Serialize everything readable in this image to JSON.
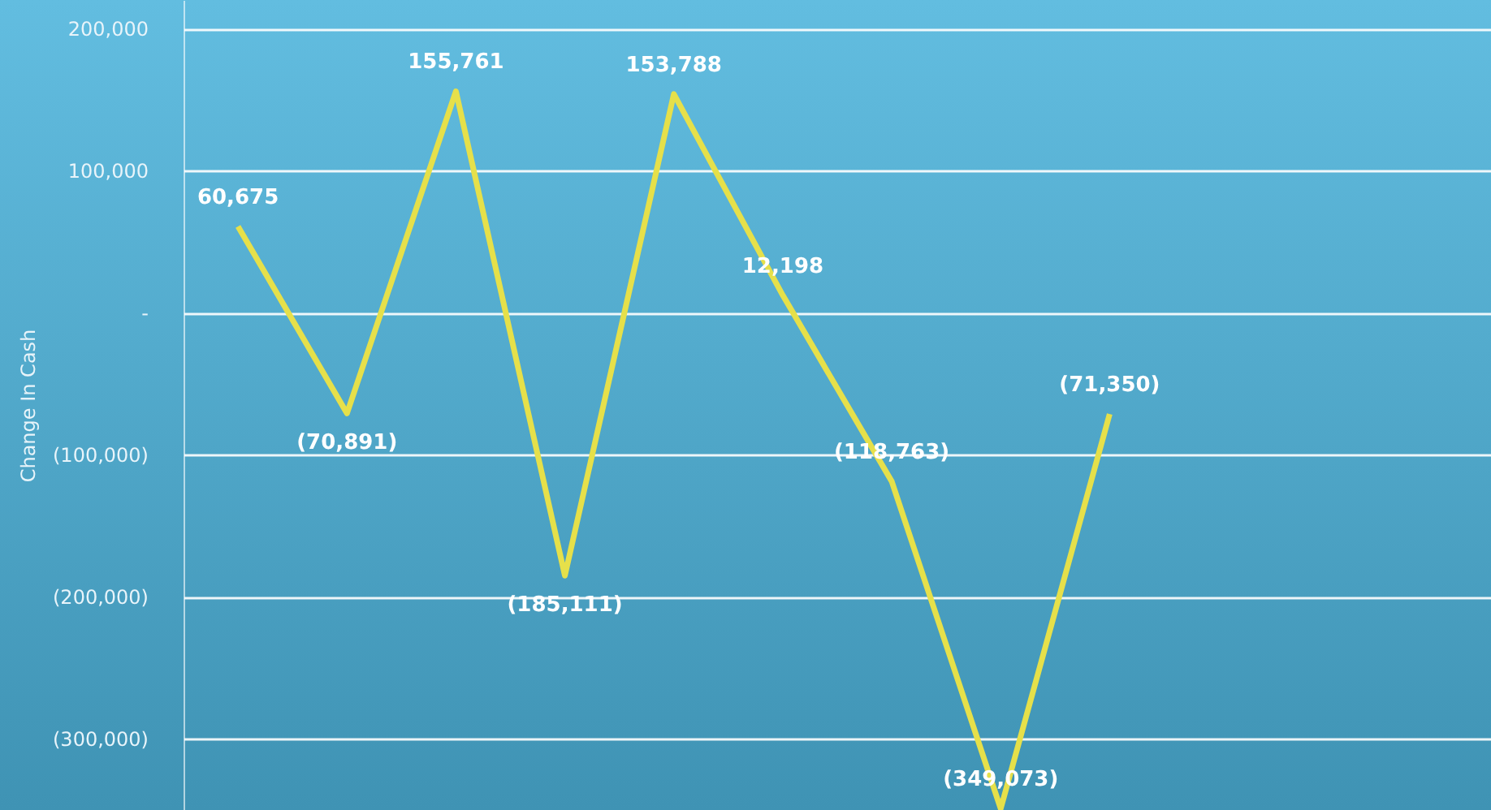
{
  "chart_data": {
    "type": "line",
    "ylabel": "Change In Cash",
    "categories": [
      null,
      null,
      null,
      null,
      null,
      null,
      null,
      null,
      null,
      null,
      null,
      null
    ],
    "series": [
      {
        "color": "#e6e04a",
        "values": [
          60675,
          -70891,
          155761,
          -185111,
          153788,
          12198,
          -118763,
          -349073,
          -71350,
          null,
          null,
          null
        ],
        "value_labels": [
          "60,675",
          "(70,891)",
          "155,761",
          "(185,111)",
          "153,788",
          "12,198",
          "(118,763)",
          "(349,073)",
          "(71,350)",
          null,
          null,
          null
        ]
      }
    ],
    "ylim": [
      -350000,
      220000
    ],
    "yticks": [
      {
        "value": -300000,
        "label": "(300,000)"
      },
      {
        "value": -200000,
        "label": "(200,000)"
      },
      {
        "value": -100000,
        "label": "(100,000)"
      },
      {
        "value": 0,
        "label": "-"
      },
      {
        "value": 100000,
        "label": "100,000"
      },
      {
        "value": 200000,
        "label": "200,000"
      }
    ],
    "grid": "y",
    "tick_labels": "y",
    "marker": "none",
    "line_style": "solid"
  }
}
